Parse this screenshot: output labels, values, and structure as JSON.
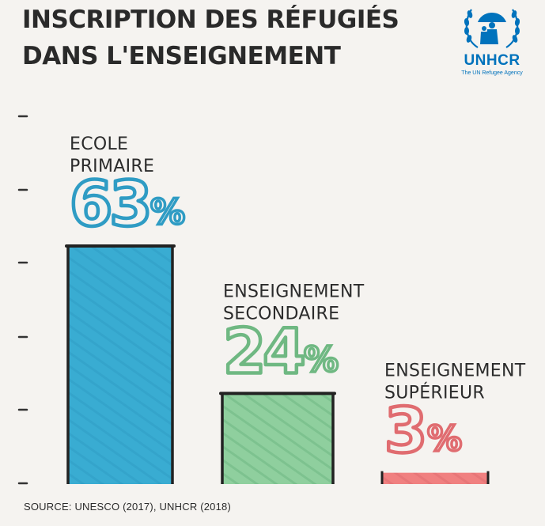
{
  "title_line1": "INSCRIPTION DES RÉFUGIÉS",
  "title_line2": "DANS L'ENSEIGNEMENT",
  "logo": {
    "name": "UNHCR",
    "tagline": "The UN Refugee Agency",
    "color": "#0072bc"
  },
  "source": "SOURCE: UNESCO (2017), UNHCR (2018)",
  "chart_data": {
    "type": "bar",
    "title": "INSCRIPTION DES RÉFUGIÉS DANS L'ENSEIGNEMENT",
    "xlabel": "",
    "ylabel": "",
    "ylim": [
      0,
      100
    ],
    "grid": false,
    "categories": [
      "ECOLE PRIMAIRE",
      "ENSEIGNEMENT SECONDAIRE",
      "ENSEIGNEMENT SUPÉRIEUR"
    ],
    "category_lines": [
      [
        "ECOLE",
        "PRIMAIRE"
      ],
      [
        "ENSEIGNEMENT",
        "SECONDAIRE"
      ],
      [
        "ENSEIGNEMENT",
        "SUPÉRIEUR"
      ]
    ],
    "values": [
      63,
      24,
      3
    ],
    "value_labels": [
      "63",
      "24",
      "3"
    ],
    "unit": "%",
    "colors": [
      "#39acd2",
      "#8fcf9e",
      "#f08080"
    ],
    "stroke_colors": [
      "#2f9cc4",
      "#6fb882",
      "#e06c70"
    ]
  }
}
